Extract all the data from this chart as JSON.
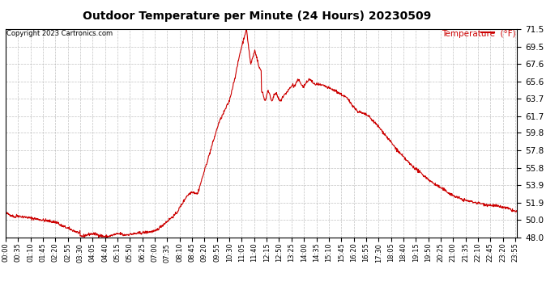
{
  "title": "Outdoor Temperature per Minute (24 Hours) 20230509",
  "copyright_text": "Copyright 2023 Cartronics.com",
  "legend_label": "Temperature  (°F)",
  "line_color": "#cc0000",
  "background_color": "#ffffff",
  "grid_color": "#bbbbbb",
  "ylim": [
    48.0,
    71.5
  ],
  "yticks": [
    48.0,
    50.0,
    51.9,
    53.9,
    55.8,
    57.8,
    59.8,
    61.7,
    63.7,
    65.6,
    67.6,
    69.5,
    71.5
  ],
  "xtick_labels": [
    "00:00",
    "00:35",
    "01:10",
    "01:45",
    "02:20",
    "02:55",
    "03:30",
    "04:05",
    "04:40",
    "05:15",
    "05:50",
    "06:25",
    "07:00",
    "07:35",
    "08:10",
    "08:45",
    "09:20",
    "09:55",
    "10:30",
    "11:05",
    "11:40",
    "12:15",
    "12:50",
    "13:25",
    "14:00",
    "14:35",
    "15:10",
    "15:45",
    "16:20",
    "16:55",
    "17:30",
    "18:05",
    "18:40",
    "19:15",
    "19:50",
    "20:25",
    "21:00",
    "21:35",
    "22:10",
    "22:45",
    "23:20",
    "23:55"
  ],
  "figsize": [
    6.9,
    3.75
  ],
  "dpi": 100
}
